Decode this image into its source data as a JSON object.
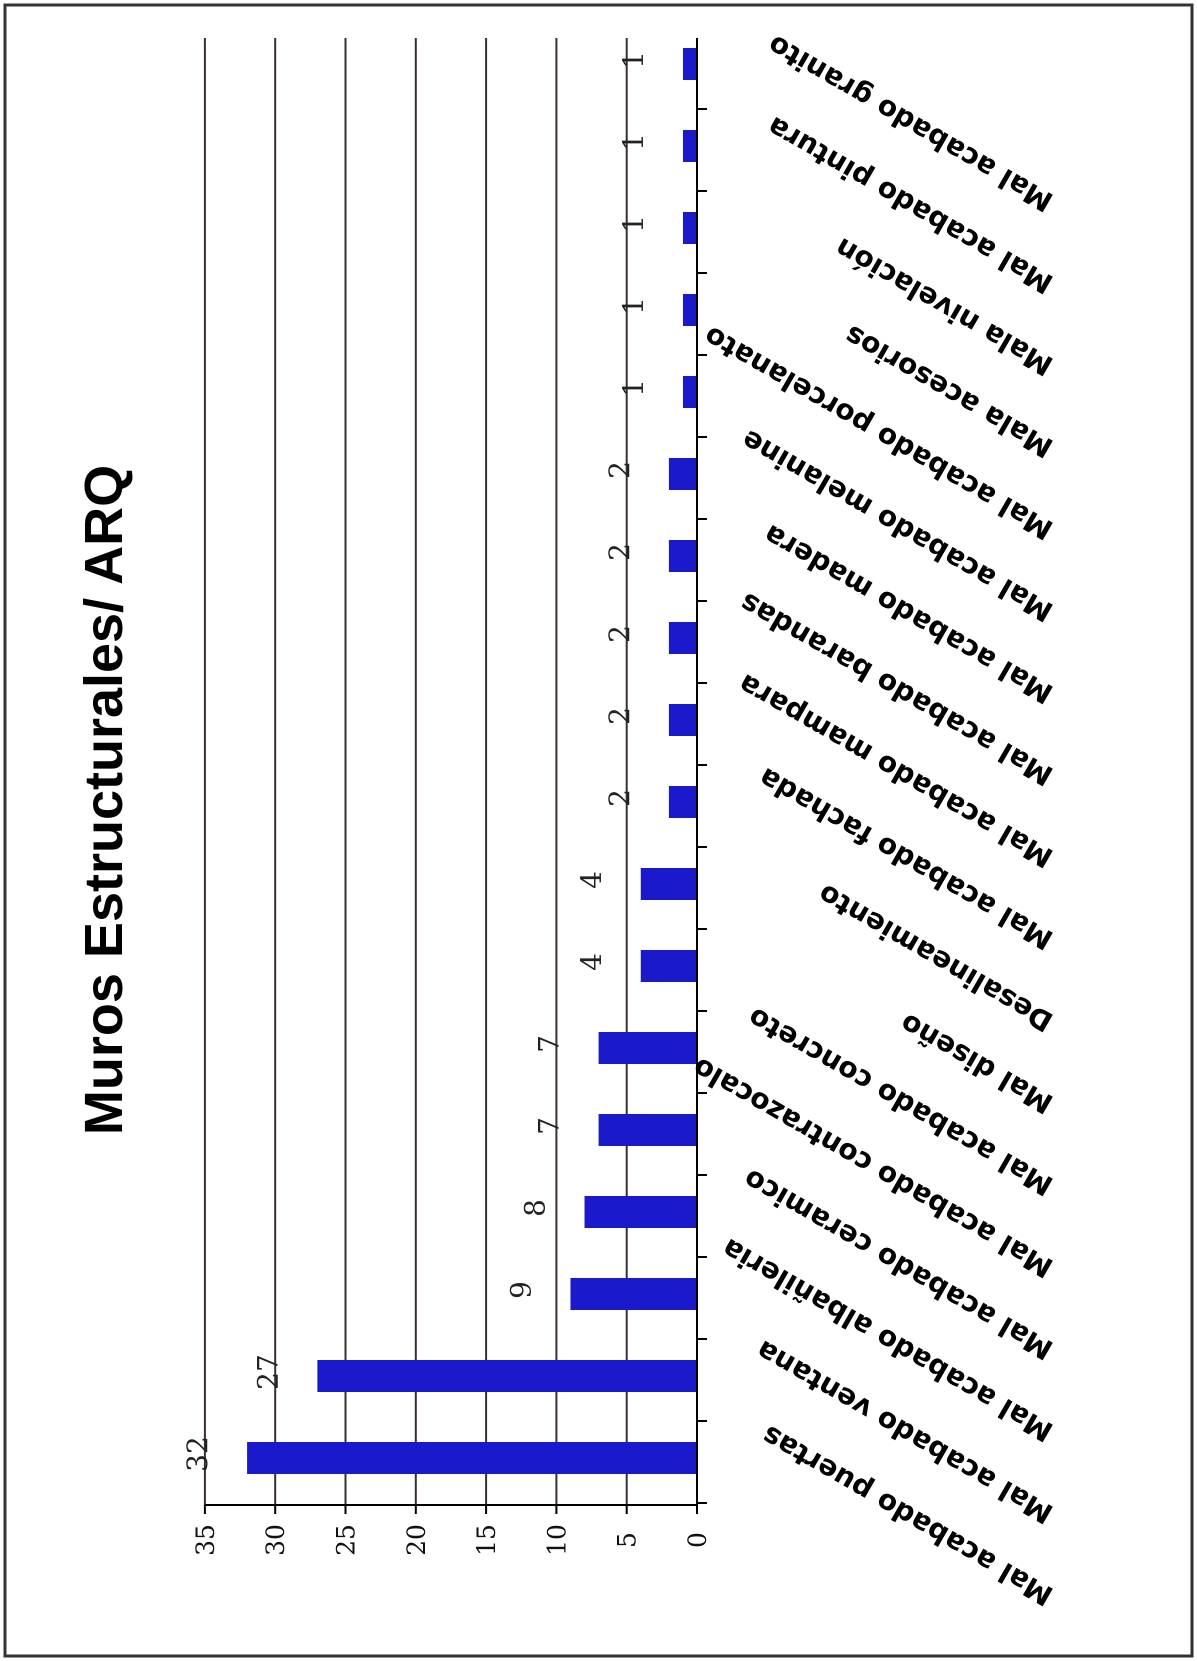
{
  "chart_data": {
    "type": "bar",
    "title": "Muros Estructurales/ ARQ",
    "xlabel": "",
    "ylabel": "",
    "ylim": [
      0,
      35
    ],
    "yticks": [
      "0",
      "5",
      "10",
      "15",
      "20",
      "25",
      "30",
      "35"
    ],
    "grid": true,
    "orientation": "rotated 90° (page viewed sideways)",
    "bar_color": "#1a1acc",
    "categories": [
      "Mal acabado puertas",
      "Mal acabado ventana",
      "Mal acabado albañileria",
      "Mal acabado ceramico",
      "Mal acabado contrazocalo",
      "Mal acabado concreto",
      "Mal diseño",
      "Desalineamiento",
      "Mal acabado fachada",
      "Mal acabado mampara",
      "Mal acabado barandas",
      "Mal acabado madera",
      "Mal acabado melanine",
      "Mal acabado porcelanato",
      "Mala acesorios",
      "Mala nivelación",
      "Mal acabado pintura",
      "Mal acabado granito"
    ],
    "values": [
      32,
      27,
      9,
      8,
      7,
      7,
      4,
      4,
      2,
      2,
      2,
      2,
      2,
      1,
      1,
      1,
      1,
      1
    ],
    "data_labels": [
      "32",
      "27",
      "9",
      "8",
      "7",
      "7",
      "4",
      "4",
      "2",
      "2",
      "2",
      "2",
      "2",
      "1",
      "1",
      "1",
      "1",
      "1"
    ]
  }
}
